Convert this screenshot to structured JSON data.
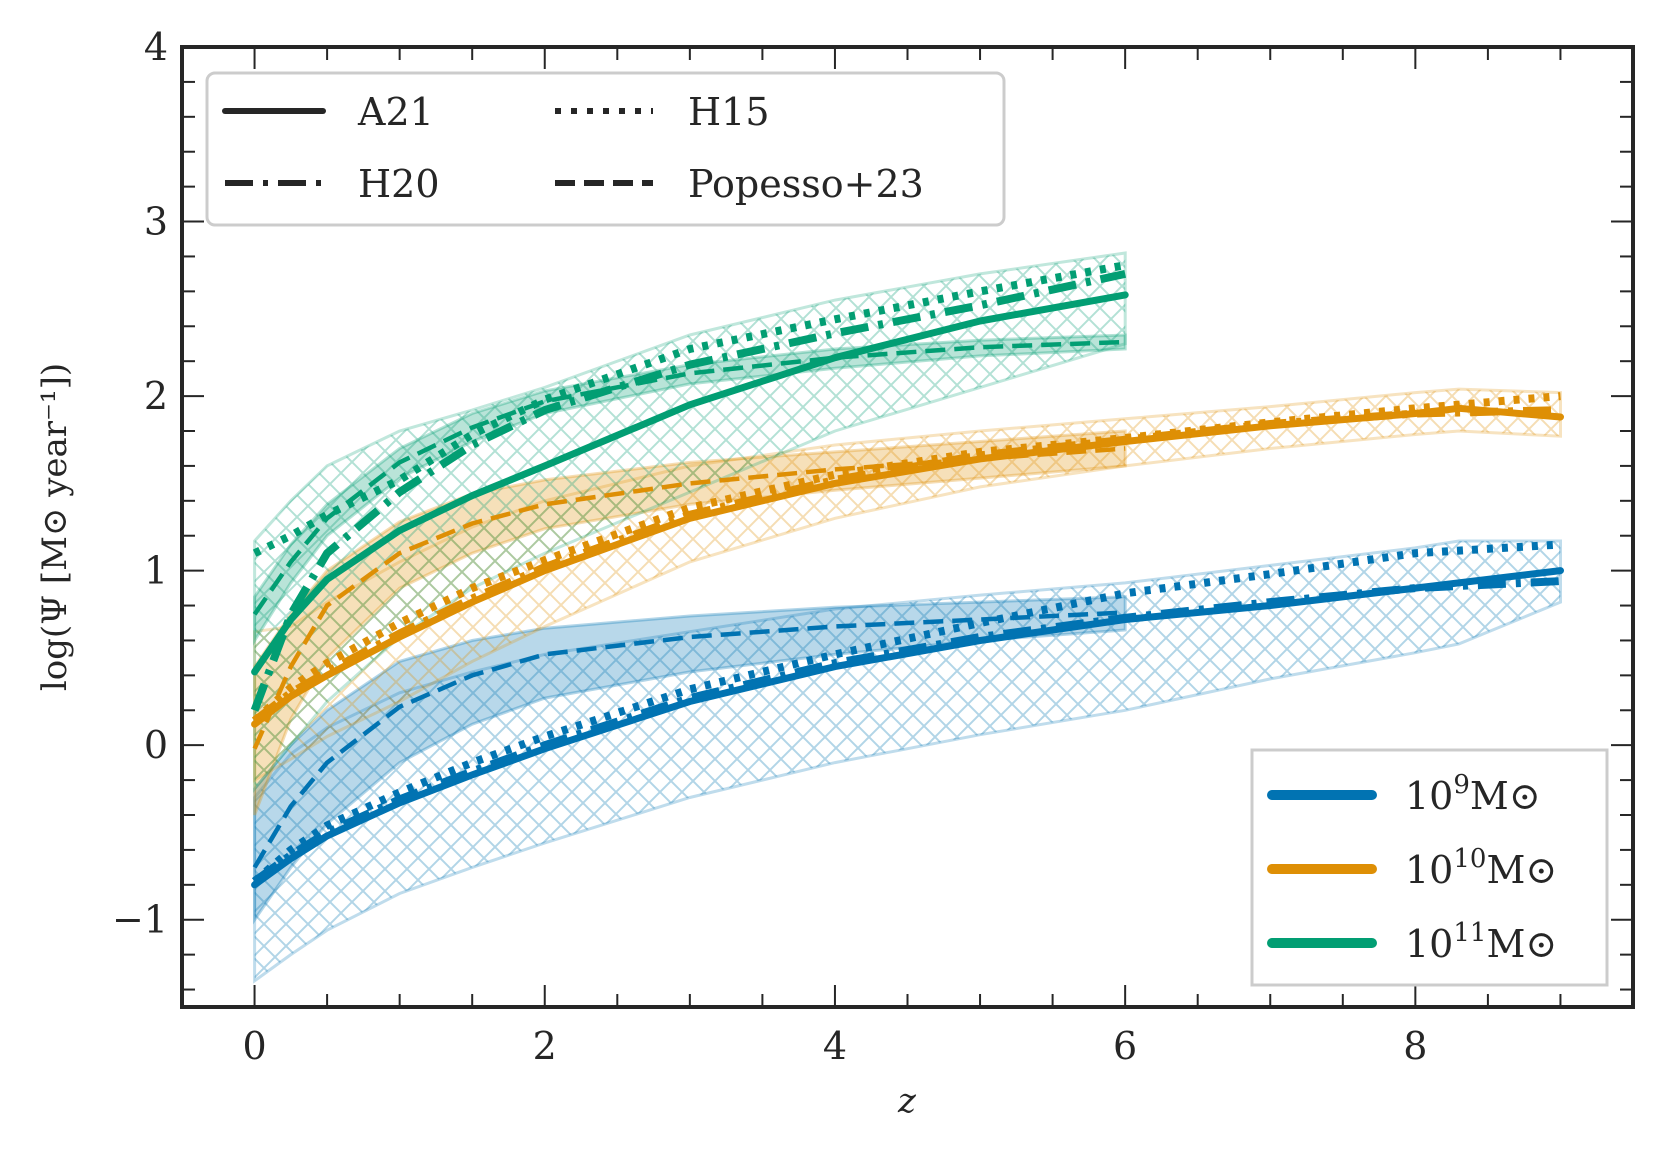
{
  "chart_data": {
    "type": "line",
    "title": "",
    "xlabel": "z",
    "ylabel": "log(Ψ [M⊙ year⁻¹])",
    "xlim": [
      -0.5,
      9.5
    ],
    "ylim": [
      -1.5,
      4.0
    ],
    "xticks": [
      0,
      2,
      4,
      6,
      8
    ],
    "xtick_labels": [
      "0",
      "2",
      "4",
      "6",
      "8"
    ],
    "yticks": [
      -1,
      0,
      1,
      2,
      3,
      4
    ],
    "ytick_labels": [
      "−1",
      "0",
      "1",
      "2",
      "3",
      "4"
    ],
    "x_minor_step": 0.5,
    "y_minor_step": 0.2,
    "grid": false,
    "colors": {
      "mass_1e9": "#0173b2",
      "mass_1e10": "#de8f05",
      "mass_1e11": "#029e73",
      "axes": "#262626",
      "legend_border": "#cccccc"
    },
    "style_legend": {
      "placement": "top-left",
      "entries": [
        {
          "label": "A21",
          "style": "solid"
        },
        {
          "label": "H20",
          "style": "dashdot"
        },
        {
          "label": "H15",
          "style": "dotted"
        },
        {
          "label": "Popesso+23",
          "style": "dashed"
        }
      ]
    },
    "mass_legend": {
      "placement": "bottom-right",
      "entries": [
        {
          "base": "10",
          "exp": "9",
          "unit": "M⊙",
          "color_key": "mass_1e9"
        },
        {
          "base": "10",
          "exp": "10",
          "unit": "M⊙",
          "color_key": "mass_1e10"
        },
        {
          "base": "10",
          "exp": "11",
          "unit": "M⊙",
          "color_key": "mass_1e11"
        }
      ]
    },
    "series": [
      {
        "name": "A21 10^9",
        "model": "A21",
        "mass": "mass_1e9",
        "style": "solid",
        "x": [
          0,
          0.25,
          0.5,
          1,
          1.5,
          2,
          3,
          4,
          5,
          6,
          7,
          8,
          9
        ],
        "y": [
          -0.8,
          -0.65,
          -0.52,
          -0.33,
          -0.17,
          -0.02,
          0.25,
          0.45,
          0.6,
          0.72,
          0.8,
          0.9,
          1.0
        ]
      },
      {
        "name": "H20 10^9",
        "model": "H20",
        "mass": "mass_1e9",
        "style": "dashdot",
        "x": [
          0,
          0.25,
          0.5,
          1,
          1.5,
          2,
          3,
          4,
          5,
          6,
          7,
          8,
          9
        ],
        "y": [
          -0.78,
          -0.63,
          -0.5,
          -0.31,
          -0.15,
          0.0,
          0.27,
          0.47,
          0.62,
          0.73,
          0.82,
          0.9,
          0.94
        ]
      },
      {
        "name": "H15 10^9",
        "model": "H15",
        "mass": "mass_1e9",
        "style": "dotted",
        "x": [
          0,
          0.25,
          0.5,
          1,
          1.5,
          2,
          3,
          4,
          5,
          6,
          7,
          8,
          9
        ],
        "y": [
          -0.78,
          -0.6,
          -0.46,
          -0.27,
          -0.1,
          0.05,
          0.32,
          0.52,
          0.7,
          0.87,
          0.98,
          1.1,
          1.15
        ]
      },
      {
        "name": "Popesso+23 10^9",
        "model": "Popesso+23",
        "mass": "mass_1e9",
        "style": "dashed",
        "x": [
          0,
          0.25,
          0.5,
          1,
          1.5,
          2,
          3,
          4,
          5,
          6
        ],
        "y": [
          -0.7,
          -0.35,
          -0.1,
          0.22,
          0.4,
          0.52,
          0.62,
          0.68,
          0.72,
          0.76
        ]
      },
      {
        "name": "A21 10^10",
        "model": "A21",
        "mass": "mass_1e10",
        "style": "solid",
        "x": [
          0,
          0.25,
          0.5,
          1,
          1.5,
          2,
          3,
          4,
          5,
          6,
          7,
          8,
          8.3,
          9
        ],
        "y": [
          0.12,
          0.28,
          0.4,
          0.62,
          0.82,
          1.0,
          1.3,
          1.5,
          1.64,
          1.74,
          1.83,
          1.9,
          1.93,
          1.88
        ]
      },
      {
        "name": "H20 10^10",
        "model": "H20",
        "mass": "mass_1e10",
        "style": "dashdot",
        "x": [
          0,
          0.25,
          0.5,
          1,
          1.5,
          2,
          3,
          4,
          5,
          6,
          7,
          8,
          9
        ],
        "y": [
          0.14,
          0.3,
          0.42,
          0.64,
          0.84,
          1.02,
          1.32,
          1.52,
          1.66,
          1.75,
          1.84,
          1.9,
          1.92
        ]
      },
      {
        "name": "H15 10^10",
        "model": "H15",
        "mass": "mass_1e10",
        "style": "dotted",
        "x": [
          0,
          0.25,
          0.5,
          1,
          1.5,
          2,
          3,
          4,
          5,
          6,
          7,
          8,
          9
        ],
        "y": [
          0.14,
          0.33,
          0.47,
          0.7,
          0.9,
          1.06,
          1.36,
          1.55,
          1.68,
          1.76,
          1.85,
          1.93,
          2.0
        ]
      },
      {
        "name": "Popesso+23 10^10",
        "model": "Popesso+23",
        "mass": "mass_1e10",
        "style": "dashed",
        "x": [
          0,
          0.25,
          0.5,
          1,
          1.5,
          2,
          3,
          4,
          5,
          6
        ],
        "y": [
          -0.02,
          0.45,
          0.8,
          1.1,
          1.27,
          1.38,
          1.5,
          1.58,
          1.64,
          1.7
        ]
      },
      {
        "name": "A21 10^11",
        "model": "A21",
        "mass": "mass_1e11",
        "style": "solid",
        "x": [
          0,
          0.25,
          0.5,
          1,
          1.5,
          2,
          3,
          4,
          5,
          6
        ],
        "y": [
          0.42,
          0.72,
          0.95,
          1.23,
          1.43,
          1.6,
          1.95,
          2.22,
          2.43,
          2.58
        ]
      },
      {
        "name": "H20 10^11",
        "model": "H20",
        "mass": "mass_1e11",
        "style": "dashdot",
        "x": [
          0,
          0.25,
          0.5,
          1,
          1.5,
          2,
          3,
          4,
          5,
          6
        ],
        "y": [
          0.2,
          0.75,
          1.1,
          1.45,
          1.72,
          1.92,
          2.18,
          2.36,
          2.52,
          2.7
        ]
      },
      {
        "name": "H15 10^11",
        "model": "H15",
        "mass": "mass_1e11",
        "style": "dotted",
        "x": [
          0,
          0.25,
          0.5,
          1,
          1.5,
          2,
          3,
          4,
          5,
          6
        ],
        "y": [
          1.1,
          1.2,
          1.32,
          1.52,
          1.78,
          1.98,
          2.27,
          2.44,
          2.6,
          2.75
        ]
      },
      {
        "name": "Popesso+23 10^11",
        "model": "Popesso+23",
        "mass": "mass_1e11",
        "style": "dashed",
        "x": [
          0,
          0.25,
          0.5,
          1,
          1.5,
          2,
          3,
          4,
          5,
          6
        ],
        "y": [
          0.75,
          1.05,
          1.3,
          1.62,
          1.82,
          1.97,
          2.13,
          2.22,
          2.28,
          2.31
        ]
      }
    ],
    "bands": [
      {
        "name": "hatched scatter 10^9",
        "mass": "mass_1e9",
        "style": "hatched",
        "x": [
          0,
          0.25,
          0.5,
          1,
          1.5,
          2,
          3,
          4,
          5,
          6,
          7,
          8,
          8.3,
          9
        ],
        "upper": [
          -0.3,
          -0.05,
          0.1,
          0.3,
          0.42,
          0.52,
          0.65,
          0.78,
          0.86,
          0.93,
          1.03,
          1.13,
          1.17,
          1.17
        ],
        "lower": [
          -1.35,
          -1.2,
          -1.06,
          -0.85,
          -0.7,
          -0.56,
          -0.3,
          -0.1,
          0.06,
          0.2,
          0.38,
          0.53,
          0.58,
          0.82
        ]
      },
      {
        "name": "shaded Popesso+23 10^9",
        "mass": "mass_1e9",
        "style": "filled",
        "x": [
          0,
          0.25,
          0.5,
          1,
          1.5,
          2,
          3,
          4,
          5,
          6
        ],
        "upper": [
          -0.25,
          0.0,
          0.2,
          0.48,
          0.6,
          0.67,
          0.74,
          0.79,
          0.82,
          0.85
        ],
        "lower": [
          -1.0,
          -0.7,
          -0.45,
          -0.1,
          0.12,
          0.27,
          0.42,
          0.52,
          0.6,
          0.66
        ]
      },
      {
        "name": "hatched scatter 10^10",
        "mass": "mass_1e10",
        "style": "hatched",
        "x": [
          0,
          0.25,
          0.5,
          1,
          1.5,
          2,
          3,
          4,
          5,
          6,
          7,
          8,
          8.3,
          9
        ],
        "upper": [
          0.65,
          0.68,
          0.82,
          1.05,
          1.25,
          1.4,
          1.6,
          1.72,
          1.8,
          1.87,
          1.94,
          2.02,
          2.04,
          2.02
        ],
        "lower": [
          -0.2,
          -0.08,
          0.05,
          0.25,
          0.48,
          0.68,
          1.05,
          1.3,
          1.48,
          1.6,
          1.7,
          1.78,
          1.8,
          1.77
        ]
      },
      {
        "name": "shaded Popesso+23 10^10",
        "mass": "mass_1e10",
        "style": "filled",
        "x": [
          0,
          0.25,
          0.5,
          1,
          1.5,
          2,
          3,
          4,
          5,
          6
        ],
        "upper": [
          0.45,
          0.75,
          1.0,
          1.28,
          1.44,
          1.52,
          1.62,
          1.68,
          1.74,
          1.8
        ],
        "lower": [
          -0.4,
          0.15,
          0.5,
          0.9,
          1.1,
          1.24,
          1.38,
          1.46,
          1.53,
          1.6
        ]
      },
      {
        "name": "hatched scatter 10^11",
        "mass": "mass_1e11",
        "style": "hatched",
        "x": [
          0,
          0.25,
          0.5,
          1,
          1.5,
          2,
          3,
          4,
          5,
          6
        ],
        "upper": [
          1.17,
          1.4,
          1.6,
          1.8,
          1.92,
          2.05,
          2.35,
          2.55,
          2.7,
          2.82
        ],
        "lower": [
          -0.25,
          0.0,
          0.25,
          0.62,
          0.9,
          1.1,
          1.45,
          1.8,
          2.05,
          2.3
        ]
      },
      {
        "name": "shaded Popesso+23 10^11",
        "mass": "mass_1e11",
        "style": "filled",
        "x": [
          0,
          0.25,
          0.5,
          1,
          1.5,
          2,
          3,
          4,
          5,
          6
        ],
        "upper": [
          0.85,
          1.15,
          1.38,
          1.7,
          1.9,
          2.03,
          2.18,
          2.27,
          2.32,
          2.35
        ],
        "lower": [
          0.6,
          0.93,
          1.2,
          1.53,
          1.74,
          1.9,
          2.07,
          2.16,
          2.23,
          2.27
        ]
      }
    ]
  }
}
